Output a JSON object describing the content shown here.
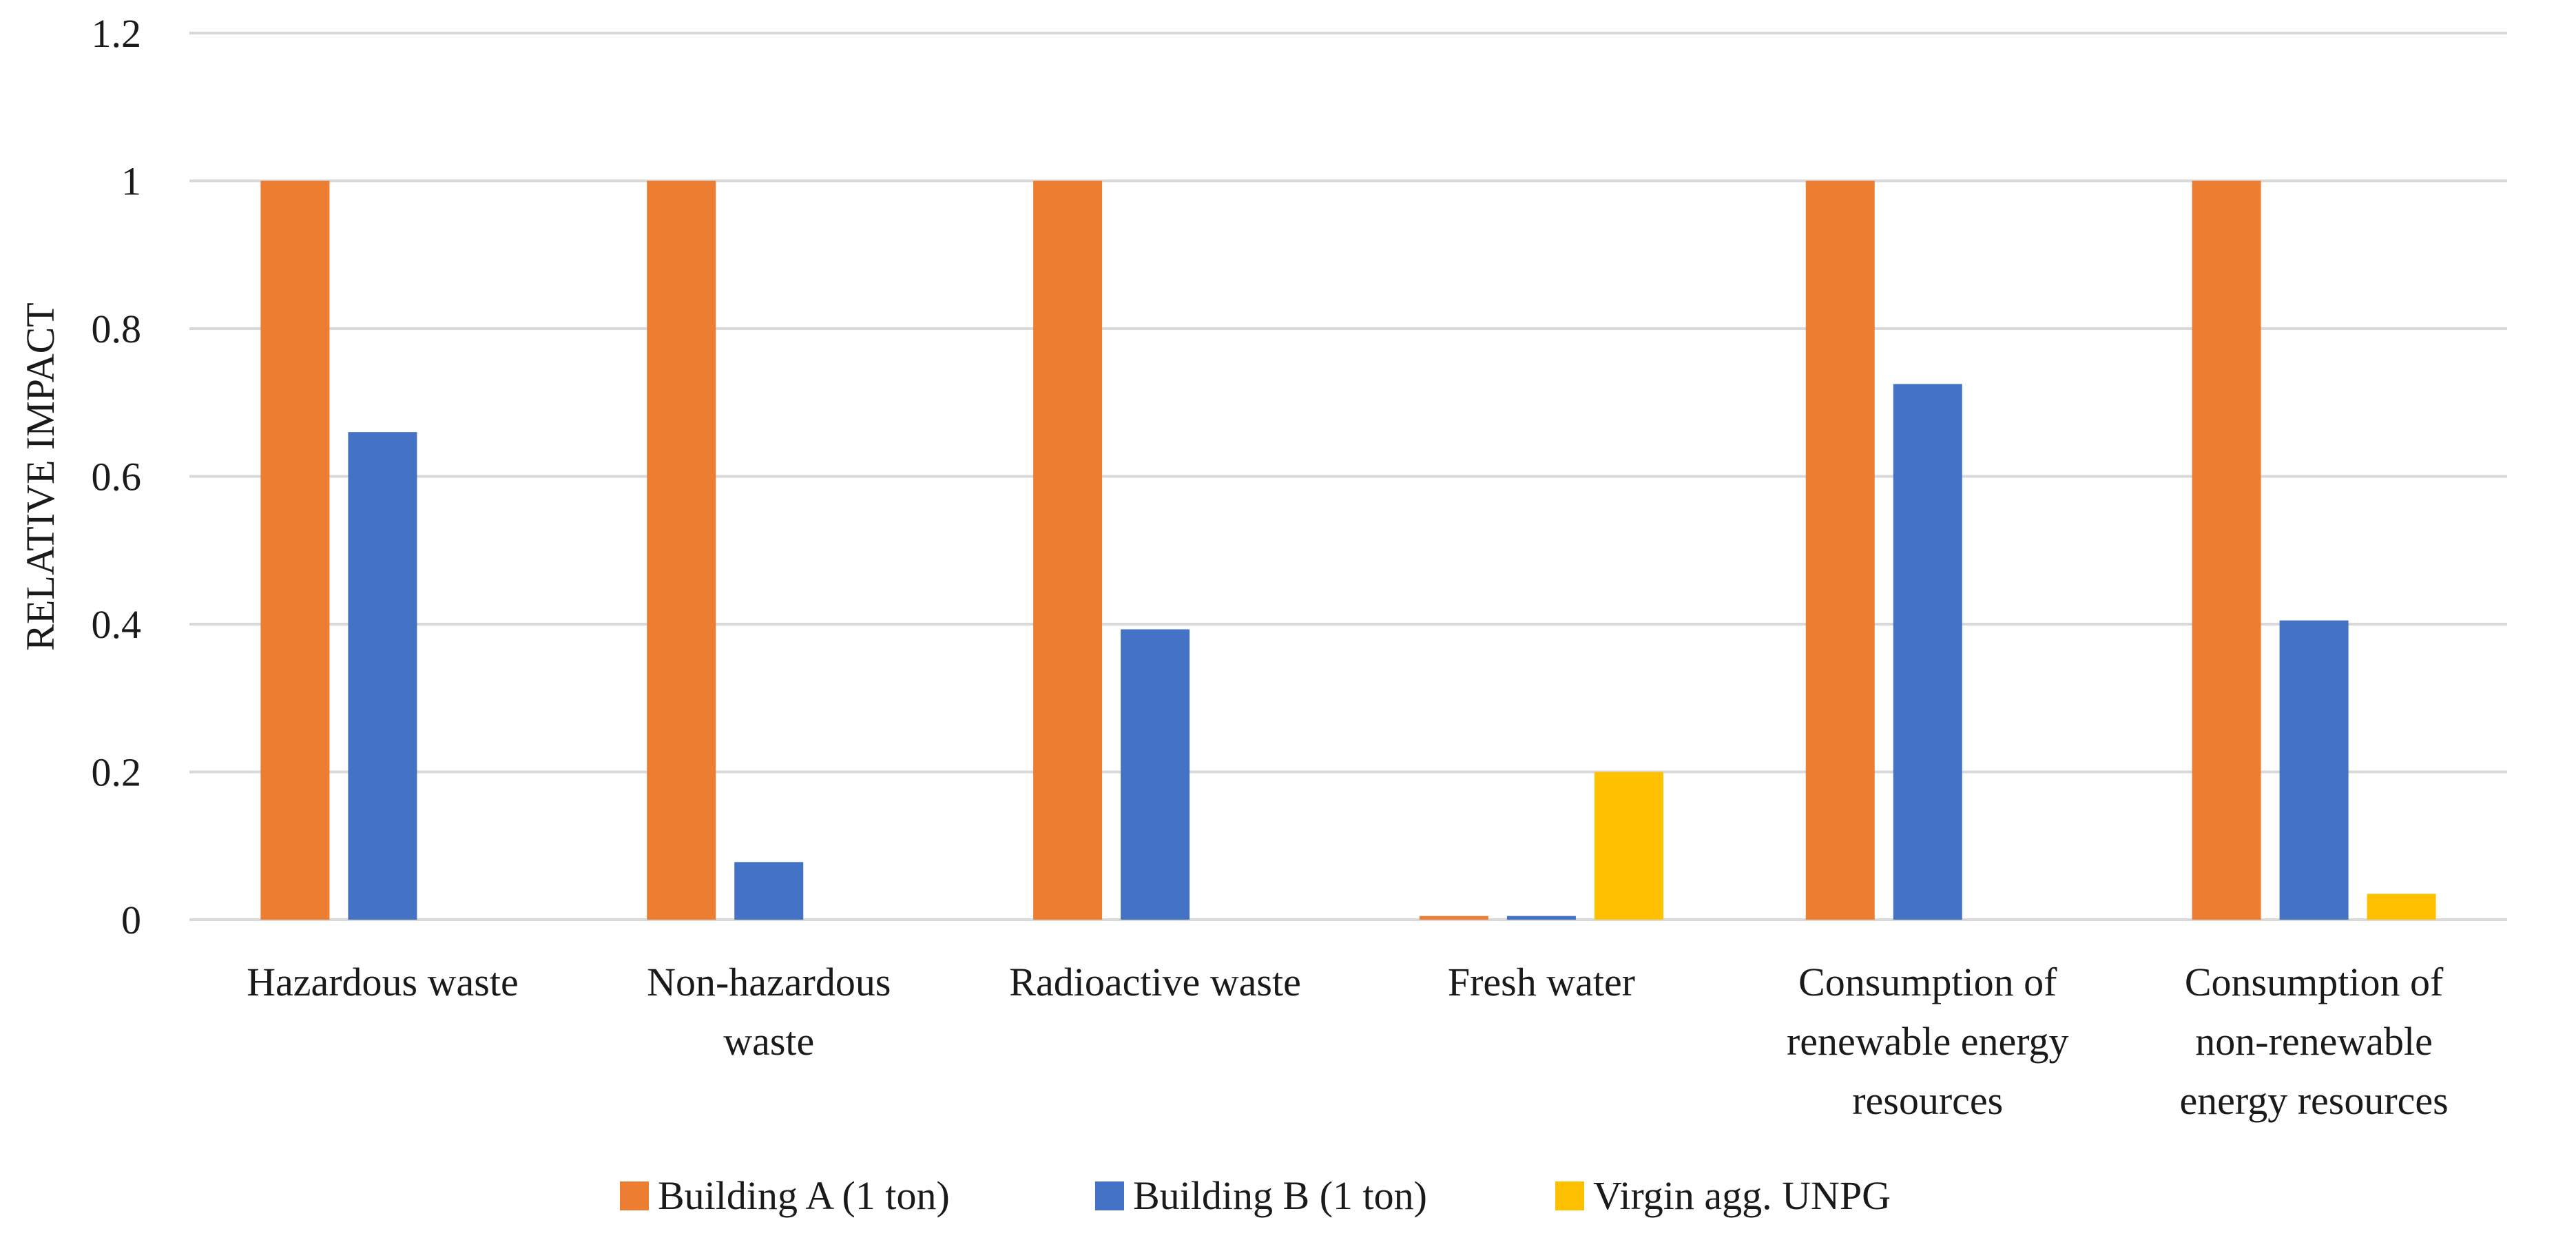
{
  "chart_data": {
    "type": "bar",
    "title": "",
    "xlabel": "",
    "ylabel": "RELATIVE IMPACT",
    "ylim": [
      0,
      1.2
    ],
    "yticks": [
      0,
      0.2,
      0.4,
      0.6,
      0.8,
      1,
      1.2
    ],
    "grid": true,
    "legend_position": "bottom",
    "categories": [
      [
        "Hazardous waste"
      ],
      [
        "Non-hazardous",
        "waste"
      ],
      [
        "Radioactive waste"
      ],
      [
        "Fresh water"
      ],
      [
        "Consumption of",
        "renewable energy",
        "resources"
      ],
      [
        "Consumption of",
        "non-renewable",
        "energy resources"
      ]
    ],
    "series": [
      {
        "name": "Building A (1 ton)",
        "color": "#ED7D31",
        "values": [
          1,
          1,
          1,
          0.005,
          1,
          1
        ]
      },
      {
        "name": "Building B (1 ton)",
        "color": "#4472C4",
        "values": [
          0.66,
          0.078,
          0.393,
          0.005,
          0.725,
          0.405
        ]
      },
      {
        "name": "Virgin agg. UNPG",
        "color": "#FFC000",
        "values": [
          0,
          0,
          0,
          0.2,
          0,
          0.035
        ]
      }
    ]
  }
}
